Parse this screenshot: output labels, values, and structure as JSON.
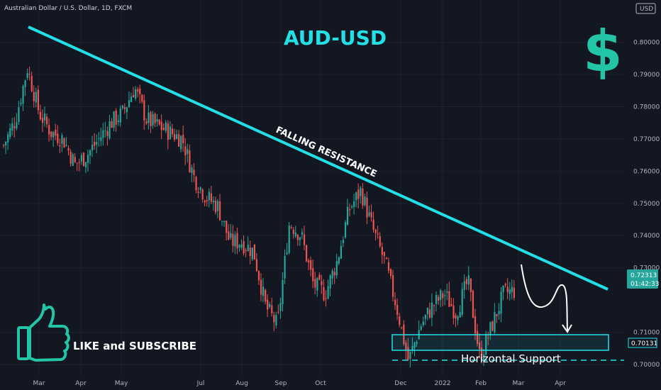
{
  "header": {
    "symbol_title": "Australian Dollar / U.S. Dollar, 1D, FXCM",
    "currency_box": "USD"
  },
  "annotations": {
    "title": "AUD-USD",
    "resistance_label": "FALLING RESISTANCE",
    "support_label": "Horizontal Support",
    "cta": "LIKE and SUBSCRIBE",
    "dollar_symbol": "$"
  },
  "price_badges": {
    "last_price": "0.72313",
    "countdown": "01:42:33",
    "support_price": "0.70131",
    "last_color": "#26a69a",
    "support_color": "#22e0e6"
  },
  "colors": {
    "up": "#26a69a",
    "down": "#ef5350",
    "accent": "#22e0e6",
    "background": "#131722"
  },
  "chart_data": {
    "type": "candlestick",
    "title": "AUD-USD",
    "x_ticks": [
      "Mar",
      "Apr",
      "May",
      "Jul",
      "Aug",
      "Sep",
      "Oct",
      "Dec",
      "2022",
      "Feb",
      "Mar",
      "Apr"
    ],
    "y_ticks": [
      "0.80000",
      "0.79000",
      "0.78000",
      "0.77000",
      "0.76000",
      "0.75000",
      "0.74000",
      "0.73000",
      "0.71000",
      "0.70000"
    ],
    "ylim": [
      0.6978,
      0.8118
    ],
    "last_price": 0.72313,
    "support_level": 0.70131,
    "close_path": [
      {
        "x": "Feb 10",
        "y": 0.768
      },
      {
        "x": "Feb 20",
        "y": 0.776
      },
      {
        "x": "Feb 25",
        "y": 0.792
      },
      {
        "x": "Mar 2",
        "y": 0.778
      },
      {
        "x": "Mar 10",
        "y": 0.772
      },
      {
        "x": "Mar 20",
        "y": 0.77
      },
      {
        "x": "Mar 28",
        "y": 0.762
      },
      {
        "x": "Apr 5",
        "y": 0.765
      },
      {
        "x": "Apr 15",
        "y": 0.77
      },
      {
        "x": "Apr 25",
        "y": 0.775
      },
      {
        "x": "May 8",
        "y": 0.778
      },
      {
        "x": "May 10",
        "y": 0.786
      },
      {
        "x": "May 15",
        "y": 0.776
      },
      {
        "x": "May 25",
        "y": 0.774
      },
      {
        "x": "Jun 5",
        "y": 0.772
      },
      {
        "x": "Jun 15",
        "y": 0.77
      },
      {
        "x": "Jun 25",
        "y": 0.758
      },
      {
        "x": "Jul 5",
        "y": 0.752
      },
      {
        "x": "Jul 15",
        "y": 0.749
      },
      {
        "x": "Jul 25",
        "y": 0.738
      },
      {
        "x": "Aug 5",
        "y": 0.738
      },
      {
        "x": "Aug 12",
        "y": 0.735
      },
      {
        "x": "Aug 20",
        "y": 0.718
      },
      {
        "x": "Aug 27",
        "y": 0.712
      },
      {
        "x": "Sep 3",
        "y": 0.744
      },
      {
        "x": "Sep 10",
        "y": 0.74
      },
      {
        "x": "Sep 20",
        "y": 0.725
      },
      {
        "x": "Sep 30",
        "y": 0.722
      },
      {
        "x": "Oct 10",
        "y": 0.732
      },
      {
        "x": "Oct 20",
        "y": 0.748
      },
      {
        "x": "Oct 28",
        "y": 0.754
      },
      {
        "x": "Nov 5",
        "y": 0.742
      },
      {
        "x": "Nov 15",
        "y": 0.732
      },
      {
        "x": "Nov 25",
        "y": 0.718
      },
      {
        "x": "Dec 3",
        "y": 0.701
      },
      {
        "x": "Dec 12",
        "y": 0.712
      },
      {
        "x": "Dec 25",
        "y": 0.718
      },
      {
        "x": "Jan 5",
        "y": 0.722
      },
      {
        "x": "Jan 15",
        "y": 0.716
      },
      {
        "x": "Jan 24",
        "y": 0.726
      },
      {
        "x": "Jan 31",
        "y": 0.702
      },
      {
        "x": "Feb 10",
        "y": 0.712
      },
      {
        "x": "Feb 20",
        "y": 0.722
      },
      {
        "x": "Feb 28",
        "y": 0.723
      }
    ]
  }
}
